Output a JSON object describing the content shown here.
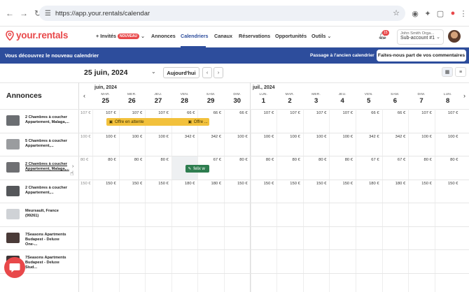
{
  "browser": {
    "url": "https://app.your.rentals/calendar"
  },
  "header": {
    "logo_text": "your.rentals",
    "nav": [
      {
        "label": "+ Invités",
        "badge": "NOUVEAU"
      },
      {
        "label": "Annonces"
      },
      {
        "label": "Calendriers",
        "active": true
      },
      {
        "label": "Canaux"
      },
      {
        "label": "Réservations"
      },
      {
        "label": "Opportunités"
      },
      {
        "label": "Outils"
      }
    ],
    "notifications_count": "15",
    "account": {
      "name": "John Smith Orga...",
      "sub": "Sub-account #1"
    }
  },
  "banner": {
    "message": "Vous découvrez le nouveau calendrier",
    "old_link": "Passage à l'ancien calendrier",
    "feedback_button": "Faites-nous part de vos commentaires"
  },
  "toolbar": {
    "current_date": "25 juin, 2024",
    "today_button": "Aujourd'hui",
    "prev": "‹",
    "next": "›"
  },
  "grid": {
    "listings_header": "Annonces",
    "months": [
      "juin, 2024",
      "juil., 2024"
    ],
    "days": [
      {
        "wd": "MAR.",
        "d": "25"
      },
      {
        "wd": "MER.",
        "d": "26"
      },
      {
        "wd": "JEU.",
        "d": "27"
      },
      {
        "wd": "VEN.",
        "d": "28"
      },
      {
        "wd": "SAM.",
        "d": "29"
      },
      {
        "wd": "DIM.",
        "d": "30"
      },
      {
        "wd": "LUN.",
        "d": "1"
      },
      {
        "wd": "MAR.",
        "d": "2"
      },
      {
        "wd": "MER.",
        "d": "3"
      },
      {
        "wd": "JEU.",
        "d": "4"
      },
      {
        "wd": "VEN.",
        "d": "5"
      },
      {
        "wd": "SAM.",
        "d": "6"
      },
      {
        "wd": "DIM.",
        "d": "7"
      },
      {
        "wd": "LUN.",
        "d": "8"
      }
    ],
    "listings": [
      {
        "name": "2 Chambres à coucher Appartement, Malaga,...",
        "thumb": "#6b6e72",
        "edge": "107 €",
        "prices": [
          "107 €",
          "107 €",
          "107 €",
          "66 €",
          "66 €",
          "66 €",
          "107 €",
          "107 €",
          "107 €",
          "107 €",
          "66 €",
          "66 €",
          "107 €",
          "107 €"
        ]
      },
      {
        "name": "5 Chambres à coucher Appartement,...",
        "thumb": "#9a9c9f",
        "edge": "100 €",
        "prices": [
          "100 €",
          "100 €",
          "100 €",
          "342 €",
          "342 €",
          "100 €",
          "100 €",
          "100 €",
          "100 €",
          "100 €",
          "342 €",
          "342 €",
          "100 €",
          "100 €"
        ]
      },
      {
        "name": "2 Chambres à coucher Appartement, Malaga,...",
        "thumb": "#6f7073",
        "edge": "80 €",
        "prices": [
          "80 €",
          "80 €",
          "80 €",
          "",
          "67 €",
          "80 €",
          "80 €",
          "80 €",
          "80 €",
          "80 €",
          "67 €",
          "67 €",
          "80 €",
          "80 €"
        ]
      },
      {
        "name": "2 Chambres à coucher Appartement,...",
        "thumb": "#55575a",
        "edge": "150 €",
        "prices": [
          "150 €",
          "150 €",
          "150 €",
          "180 €",
          "180 €",
          "150 €",
          "150 €",
          "150 €",
          "150 €",
          "150 €",
          "180 €",
          "180 €",
          "150 €",
          "150 €"
        ]
      },
      {
        "name": "Meursault, France (99261)",
        "thumb": "#cfd2d6",
        "edge": "",
        "prices": []
      },
      {
        "name": "7Seasons Apartments Budapest - Deluxe One-...",
        "thumb": "#4a3b38",
        "edge": "",
        "prices": []
      },
      {
        "name": "7Seasons Apartments Budapest - Deluxe Stud...",
        "thumb": "#3e3536",
        "edge": "",
        "prices": []
      }
    ],
    "reservations": [
      {
        "label": "Offre en attente",
        "color": "yellow"
      },
      {
        "label": "Offre ...",
        "color": "yellow"
      },
      {
        "label": "felix w",
        "color": "green"
      }
    ]
  }
}
